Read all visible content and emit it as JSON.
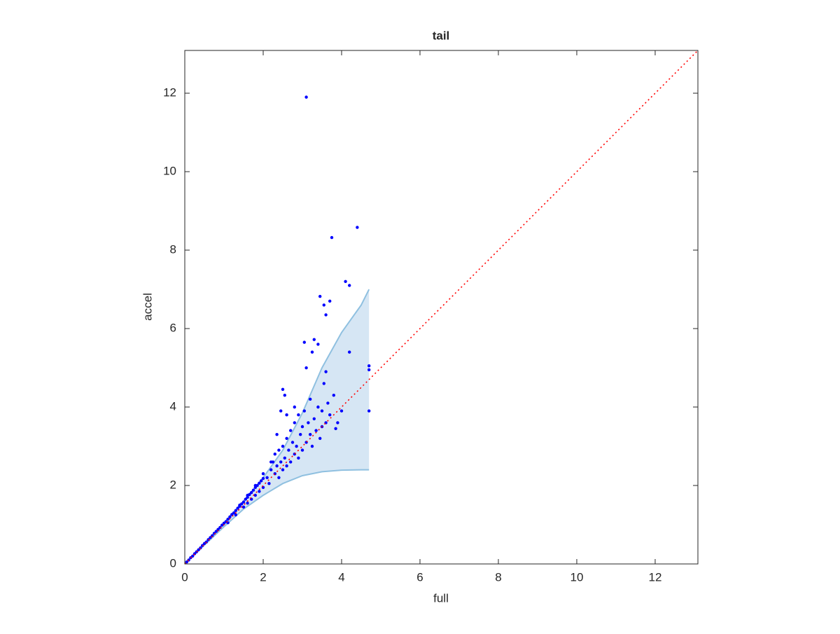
{
  "chart_data": {
    "type": "scatter",
    "title": "tail",
    "xlabel": "full",
    "ylabel": "accel",
    "xlim": [
      0,
      13.09
    ],
    "ylim": [
      0,
      13.09
    ],
    "xticks": [
      0,
      2,
      4,
      6,
      8,
      10,
      12
    ],
    "yticks": [
      0,
      2,
      4,
      6,
      8,
      10,
      12
    ],
    "band": {
      "color": "#d6e6f4",
      "edge_color": "#8fc0e0",
      "x": [
        0,
        0.5,
        1,
        1.5,
        2,
        2.5,
        3,
        3.5,
        4,
        4.5,
        4.7
      ],
      "lower": [
        0,
        0.48,
        0.95,
        1.4,
        1.75,
        2.05,
        2.25,
        2.35,
        2.39,
        2.4,
        2.4
      ],
      "upper": [
        0,
        0.52,
        1.05,
        1.6,
        2.2,
        2.9,
        3.85,
        5.0,
        5.9,
        6.6,
        7.0
      ]
    },
    "reference_line": {
      "color": "#ff0000",
      "x": [
        0,
        13.09
      ],
      "y": [
        0,
        13.09
      ]
    },
    "points": {
      "color": "#0000ff",
      "x": [
        0.05,
        0.1,
        0.15,
        0.2,
        0.25,
        0.3,
        0.35,
        0.4,
        0.45,
        0.5,
        0.55,
        0.6,
        0.65,
        0.7,
        0.75,
        0.8,
        0.85,
        0.9,
        0.95,
        1.0,
        1.05,
        1.1,
        1.15,
        1.2,
        1.25,
        1.3,
        1.35,
        1.4,
        1.45,
        1.5,
        1.55,
        1.6,
        1.65,
        1.7,
        1.75,
        1.8,
        1.85,
        1.9,
        1.95,
        2.0,
        1.1,
        1.3,
        1.5,
        1.6,
        1.7,
        1.8,
        1.9,
        2.0,
        1.4,
        1.6,
        1.8,
        2.0,
        2.1,
        2.15,
        2.2,
        2.25,
        2.3,
        2.3,
        2.35,
        2.4,
        2.4,
        2.45,
        2.5,
        2.5,
        2.55,
        2.6,
        2.6,
        2.65,
        2.7,
        2.7,
        2.75,
        2.8,
        2.8,
        2.85,
        2.9,
        2.9,
        2.95,
        3.0,
        3.0,
        3.05,
        3.1,
        3.15,
        3.2,
        3.2,
        3.25,
        3.3,
        3.35,
        3.4,
        3.45,
        3.5,
        3.55,
        3.6,
        3.65,
        3.7,
        3.8,
        3.9,
        4.0,
        2.35,
        2.45,
        2.6,
        2.2,
        3.1,
        4.4,
        3.75,
        4.1,
        4.2,
        3.45,
        3.7,
        3.55,
        3.6,
        3.05,
        3.3,
        3.4,
        3.25,
        4.2,
        3.6,
        3.1,
        4.7,
        4.7,
        4.7,
        2.5,
        2.55,
        2.8,
        3.85,
        3.5
      ],
      "y": [
        0.05,
        0.1,
        0.16,
        0.2,
        0.26,
        0.31,
        0.36,
        0.41,
        0.47,
        0.52,
        0.56,
        0.62,
        0.67,
        0.72,
        0.78,
        0.83,
        0.88,
        0.93,
        0.99,
        1.04,
        1.08,
        1.14,
        1.2,
        1.26,
        1.3,
        1.36,
        1.42,
        1.47,
        1.53,
        1.58,
        1.65,
        1.7,
        1.77,
        1.82,
        1.88,
        1.95,
        2.0,
        2.06,
        2.12,
        2.18,
        1.05,
        1.25,
        1.45,
        1.55,
        1.65,
        1.75,
        1.85,
        1.95,
        1.5,
        1.75,
        2.0,
        2.3,
        2.2,
        2.05,
        2.4,
        2.6,
        2.3,
        2.8,
        2.5,
        2.9,
        2.2,
        2.6,
        3.0,
        2.4,
        2.7,
        3.2,
        2.5,
        2.9,
        3.4,
        2.6,
        3.1,
        3.6,
        2.8,
        3.0,
        3.8,
        2.7,
        3.3,
        3.5,
        2.9,
        3.9,
        3.1,
        3.6,
        3.3,
        4.2,
        3.0,
        3.7,
        3.4,
        4.0,
        3.2,
        3.9,
        4.6,
        3.6,
        4.1,
        3.8,
        4.3,
        3.6,
        3.9,
        3.3,
        3.9,
        3.8,
        2.6,
        11.9,
        8.58,
        8.32,
        7.2,
        7.1,
        6.82,
        6.7,
        6.6,
        6.35,
        5.65,
        5.72,
        5.6,
        5.4,
        5.4,
        4.9,
        5.0,
        5.05,
        4.95,
        3.9,
        4.45,
        4.3,
        4.0,
        3.45,
        3.5
      ]
    }
  }
}
